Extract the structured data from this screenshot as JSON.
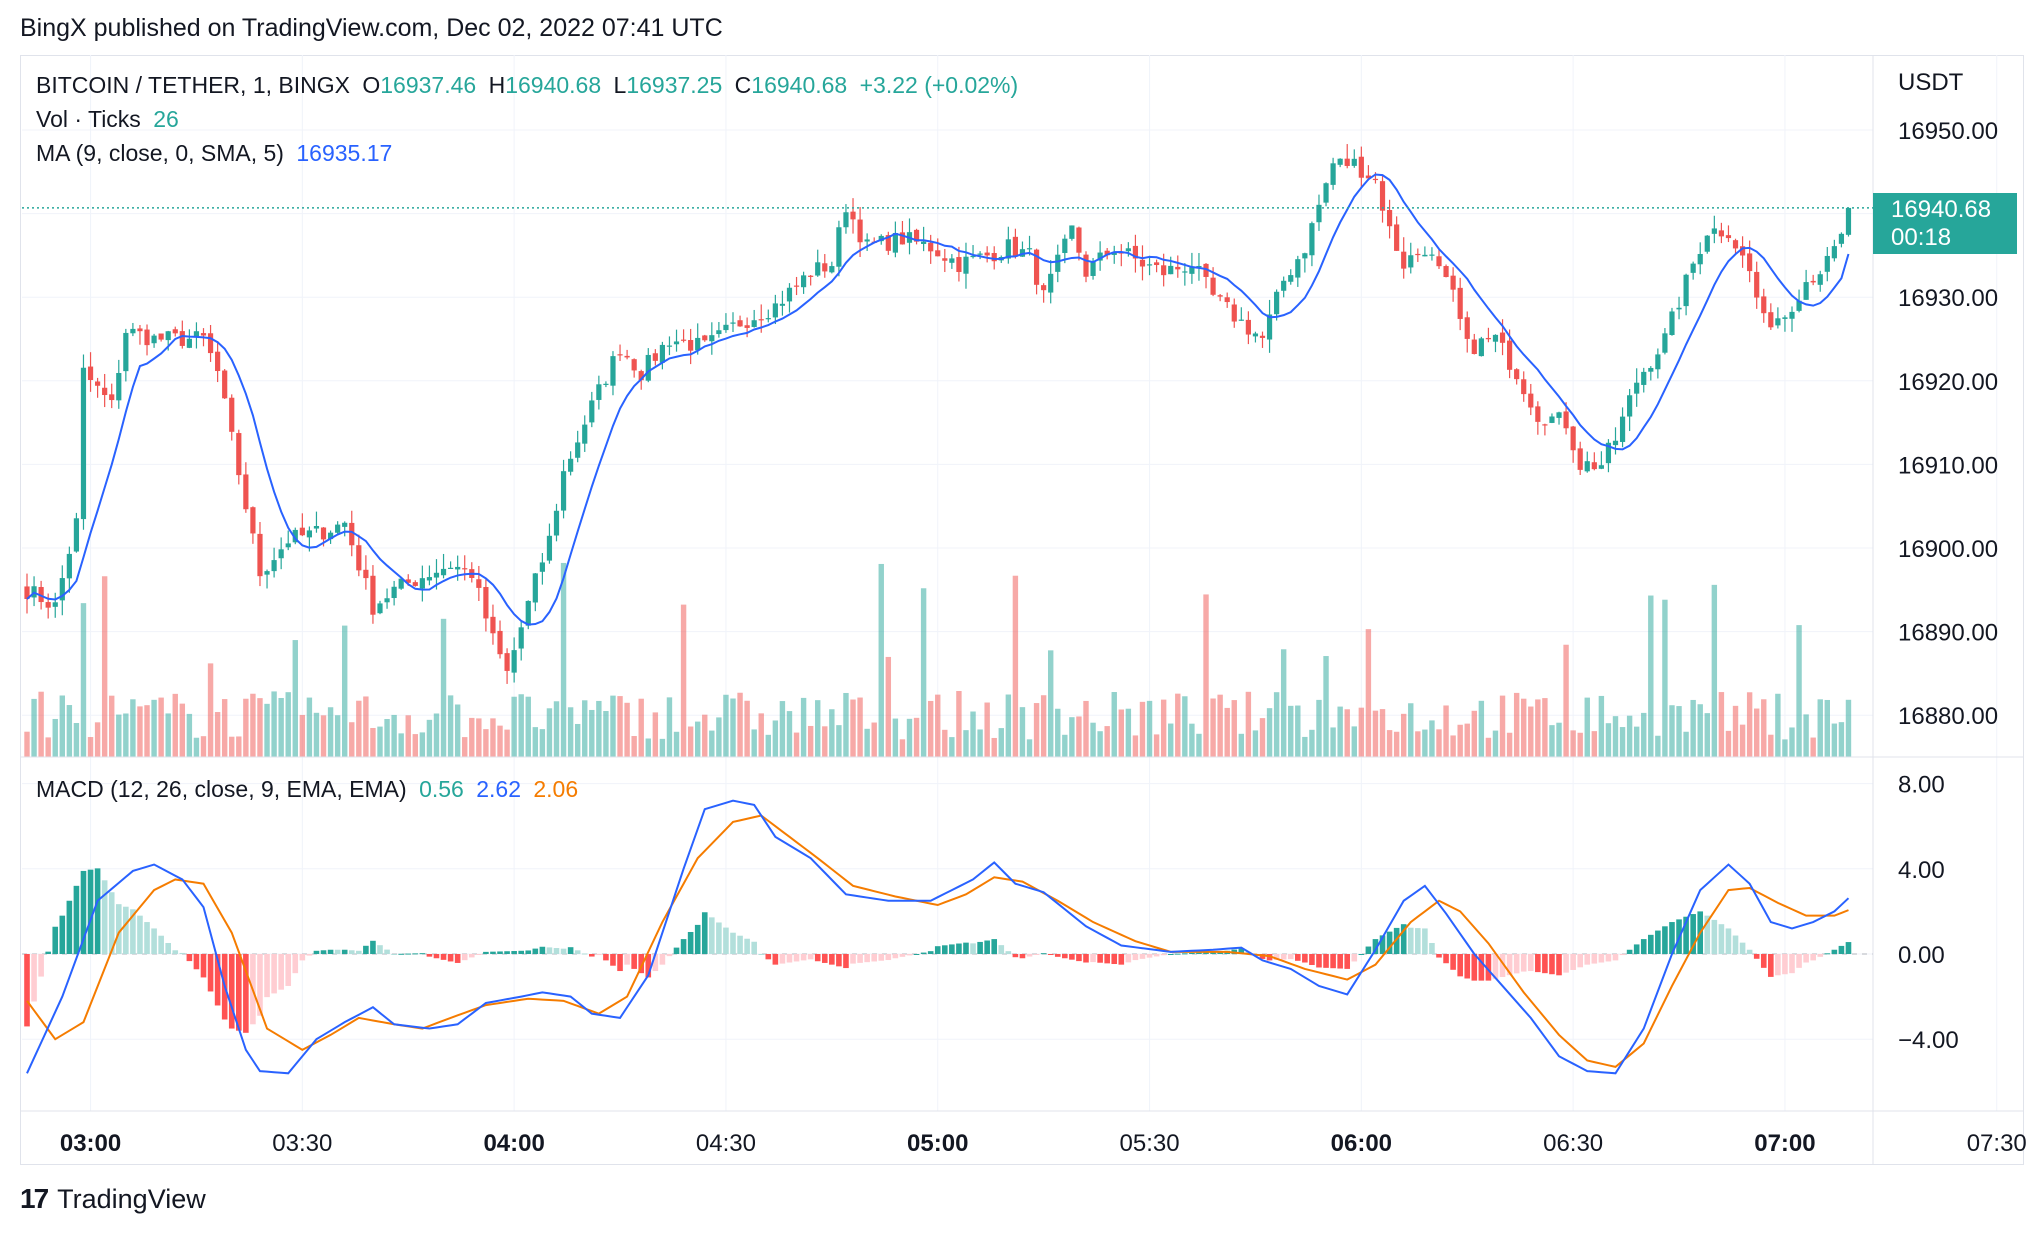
{
  "header": {
    "published_by": "BingX published on TradingView.com, Dec 02, 2022 07:41 UTC"
  },
  "legend": {
    "symbol": "BITCOIN / TETHER, 1, BINGX",
    "o_label": "O",
    "o_value": "16937.46",
    "h_label": "H",
    "h_value": "16940.68",
    "l_label": "L",
    "l_value": "16937.25",
    "c_label": "C",
    "c_value": "16940.68",
    "change": "+3.22 (+0.02%)",
    "vol_label": "Vol · Ticks",
    "vol_value": "26",
    "ma_label": "MA (9, close, 0, SMA, 5)",
    "ma_value": "16935.17",
    "macd_label": "MACD (12, 26, close, 9, EMA, EMA)",
    "macd_hist": "0.56",
    "macd_line": "2.62",
    "macd_signal": "2.06"
  },
  "price_tag": {
    "value": "16940.68",
    "countdown": "00:18"
  },
  "footer": {
    "brand": "TradingView"
  },
  "colors": {
    "up": "#26a69a",
    "down": "#ef5350",
    "ma": "#2962ff",
    "signal": "#f57c00"
  },
  "chart_data": [
    {
      "type": "candlestick",
      "title": "BITCOIN / TETHER, 1, BINGX",
      "currency": "USDT",
      "y_ticks": [
        "16950.00",
        "16940.00",
        "16930.00",
        "16920.00",
        "16910.00",
        "16900.00",
        "16890.00",
        "16880.00"
      ],
      "ylim": [
        16875,
        16957
      ],
      "x_ticks": [
        "03:00",
        "03:30",
        "04:00",
        "04:30",
        "05:00",
        "05:30",
        "06:00",
        "06:30",
        "07:00",
        "07:30"
      ],
      "bold_x_ticks": [
        "03:00",
        "04:00",
        "05:00",
        "06:00",
        "07:00"
      ],
      "time_range": [
        "02:51",
        "07:41"
      ],
      "close_anchors": [
        [
          0,
          16895
        ],
        [
          4,
          16893
        ],
        [
          7,
          16903
        ],
        [
          8,
          16921
        ],
        [
          12,
          16917
        ],
        [
          14,
          16926
        ],
        [
          18,
          16925
        ],
        [
          25,
          16925
        ],
        [
          27,
          16921
        ],
        [
          30,
          16909
        ],
        [
          33,
          16897
        ],
        [
          37,
          16901
        ],
        [
          42,
          16902
        ],
        [
          45,
          16903
        ],
        [
          49,
          16893
        ],
        [
          52,
          16895
        ],
        [
          57,
          16897
        ],
        [
          60,
          16898
        ],
        [
          63,
          16897
        ],
        [
          66,
          16889
        ],
        [
          68,
          16885
        ],
        [
          72,
          16896
        ],
        [
          74,
          16901
        ],
        [
          76,
          16909
        ],
        [
          80,
          16917
        ],
        [
          84,
          16924
        ],
        [
          87,
          16921
        ],
        [
          91,
          16925
        ],
        [
          96,
          16924
        ],
        [
          101,
          16927
        ],
        [
          106,
          16929
        ],
        [
          111,
          16933
        ],
        [
          114,
          16934
        ],
        [
          116,
          16941
        ],
        [
          119,
          16936
        ],
        [
          124,
          16937
        ],
        [
          128,
          16936
        ],
        [
          132,
          16934
        ],
        [
          136,
          16935
        ],
        [
          139,
          16936
        ],
        [
          142,
          16935
        ],
        [
          144,
          16930
        ],
        [
          148,
          16938
        ],
        [
          150,
          16933
        ],
        [
          154,
          16936
        ],
        [
          158,
          16934
        ],
        [
          161,
          16933
        ],
        [
          165,
          16934
        ],
        [
          168,
          16930
        ],
        [
          172,
          16927
        ],
        [
          175,
          16925
        ],
        [
          178,
          16932
        ],
        [
          181,
          16936
        ],
        [
          183,
          16941
        ],
        [
          185,
          16946
        ],
        [
          188,
          16946
        ],
        [
          191,
          16944
        ],
        [
          193,
          16938
        ],
        [
          195,
          16934
        ],
        [
          198,
          16936
        ],
        [
          202,
          16930
        ],
        [
          204,
          16924
        ],
        [
          208,
          16925
        ],
        [
          211,
          16921
        ],
        [
          214,
          16916
        ],
        [
          218,
          16915
        ],
        [
          220,
          16910
        ],
        [
          223,
          16910
        ],
        [
          225,
          16913
        ],
        [
          228,
          16920
        ],
        [
          232,
          16925
        ],
        [
          236,
          16934
        ],
        [
          238,
          16938
        ],
        [
          241,
          16938
        ],
        [
          244,
          16933
        ],
        [
          246,
          16927
        ],
        [
          249,
          16928
        ],
        [
          252,
          16932
        ],
        [
          255,
          16934
        ],
        [
          257,
          16937
        ],
        [
          258,
          16940.68
        ]
      ],
      "last": {
        "open": 16937.46,
        "high": 16940.68,
        "low": 16937.25,
        "close": 16940.68
      },
      "overlay": {
        "name": "MA (9, close, 0, SMA, 5)",
        "last": 16935.17
      }
    },
    {
      "type": "bar",
      "title": "Vol · Ticks",
      "last": 26
    },
    {
      "type": "line",
      "title": "MACD (12, 26, close, 9, EMA, EMA)",
      "y_ticks": [
        "8.00",
        "4.00",
        "0.00",
        "−4.00"
      ],
      "ylim": [
        -8,
        8.2
      ],
      "macd_anchors": [
        [
          0,
          -5.6
        ],
        [
          5,
          -2
        ],
        [
          10,
          2.5
        ],
        [
          15,
          3.9
        ],
        [
          18,
          4.2
        ],
        [
          22,
          3.5
        ],
        [
          25,
          2.2
        ],
        [
          28,
          -1.5
        ],
        [
          31,
          -4.5
        ],
        [
          33,
          -5.5
        ],
        [
          37,
          -5.6
        ],
        [
          41,
          -4
        ],
        [
          45,
          -3.2
        ],
        [
          49,
          -2.5
        ],
        [
          52,
          -3.3
        ],
        [
          57,
          -3.5
        ],
        [
          61,
          -3.3
        ],
        [
          65,
          -2.3
        ],
        [
          70,
          -2
        ],
        [
          73,
          -1.8
        ],
        [
          77,
          -2
        ],
        [
          80,
          -2.8
        ],
        [
          84,
          -3
        ],
        [
          88,
          -1
        ],
        [
          93,
          4
        ],
        [
          96,
          6.8
        ],
        [
          100,
          7.2
        ],
        [
          103,
          7
        ],
        [
          106,
          5.5
        ],
        [
          111,
          4.5
        ],
        [
          116,
          2.8
        ],
        [
          122,
          2.5
        ],
        [
          128,
          2.5
        ],
        [
          131,
          3
        ],
        [
          134,
          3.5
        ],
        [
          137,
          4.3
        ],
        [
          140,
          3.3
        ],
        [
          144,
          2.9
        ],
        [
          150,
          1.3
        ],
        [
          155,
          0.4
        ],
        [
          162,
          0.1
        ],
        [
          168,
          0.2
        ],
        [
          172,
          0.3
        ],
        [
          175,
          -0.3
        ],
        [
          179,
          -0.7
        ],
        [
          183,
          -1.5
        ],
        [
          187,
          -1.9
        ],
        [
          191,
          0.2
        ],
        [
          195,
          2.5
        ],
        [
          198,
          3.2
        ],
        [
          201,
          1.9
        ],
        [
          205,
          0
        ],
        [
          209,
          -1.5
        ],
        [
          213,
          -3
        ],
        [
          217,
          -4.8
        ],
        [
          221,
          -5.5
        ],
        [
          225,
          -5.6
        ],
        [
          229,
          -3.5
        ],
        [
          233,
          0
        ],
        [
          237,
          3
        ],
        [
          241,
          4.2
        ],
        [
          244,
          3.3
        ],
        [
          247,
          1.5
        ],
        [
          250,
          1.2
        ],
        [
          253,
          1.5
        ],
        [
          256,
          2
        ],
        [
          258,
          2.62
        ]
      ],
      "signal_anchors": [
        [
          0,
          -2.2
        ],
        [
          4,
          -4
        ],
        [
          8,
          -3.2
        ],
        [
          13,
          1
        ],
        [
          18,
          3
        ],
        [
          21,
          3.5
        ],
        [
          25,
          3.3
        ],
        [
          29,
          1
        ],
        [
          34,
          -3.5
        ],
        [
          39,
          -4.5
        ],
        [
          43,
          -3.8
        ],
        [
          47,
          -3
        ],
        [
          52,
          -3.3
        ],
        [
          56,
          -3.5
        ],
        [
          60,
          -3
        ],
        [
          65,
          -2.4
        ],
        [
          71,
          -2.1
        ],
        [
          76,
          -2.2
        ],
        [
          81,
          -2.8
        ],
        [
          85,
          -2
        ],
        [
          90,
          1.5
        ],
        [
          95,
          4.5
        ],
        [
          100,
          6.2
        ],
        [
          104,
          6.5
        ],
        [
          108,
          5.5
        ],
        [
          112,
          4.5
        ],
        [
          117,
          3.2
        ],
        [
          123,
          2.7
        ],
        [
          129,
          2.3
        ],
        [
          133,
          2.8
        ],
        [
          137,
          3.6
        ],
        [
          141,
          3.4
        ],
        [
          146,
          2.5
        ],
        [
          151,
          1.5
        ],
        [
          157,
          0.6
        ],
        [
          162,
          0.1
        ],
        [
          170,
          0.1
        ],
        [
          176,
          -0.1
        ],
        [
          181,
          -0.7
        ],
        [
          187,
          -1.2
        ],
        [
          191,
          -0.5
        ],
        [
          196,
          1.5
        ],
        [
          200,
          2.5
        ],
        [
          203,
          2
        ],
        [
          207,
          0.5
        ],
        [
          212,
          -1.8
        ],
        [
          217,
          -3.8
        ],
        [
          221,
          -5
        ],
        [
          225,
          -5.3
        ],
        [
          229,
          -4.2
        ],
        [
          233,
          -1.5
        ],
        [
          237,
          1
        ],
        [
          241,
          3
        ],
        [
          244,
          3.1
        ],
        [
          248,
          2.4
        ],
        [
          252,
          1.8
        ],
        [
          256,
          1.8
        ],
        [
          258,
          2.06
        ]
      ],
      "last": {
        "histogram": 0.56,
        "macd": 2.62,
        "signal": 2.06
      }
    }
  ]
}
